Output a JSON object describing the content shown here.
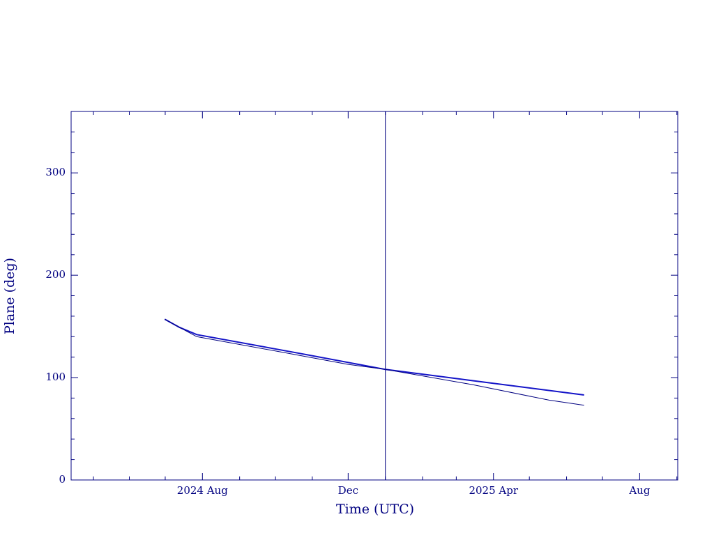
{
  "chart_data": {
    "type": "line",
    "x_label": "Time (UTC)",
    "y_label": "Plane (deg)",
    "xlim": [
      2024.282,
      2025.668
    ],
    "ylim": [
      0,
      360
    ],
    "xticks": [
      {
        "value": 2024.582,
        "label": "2024 Aug"
      },
      {
        "value": 2024.915,
        "label": "Dec"
      },
      {
        "value": 2025.247,
        "label": "2025 Apr"
      },
      {
        "value": 2025.581,
        "label": "Aug"
      }
    ],
    "x_minor_ticks": [
      2024.333,
      2024.415,
      2024.497,
      2024.667,
      2024.749,
      2024.833,
      2025.0,
      2025.085,
      2025.162,
      2025.329,
      2025.414,
      2025.496,
      2025.666
    ],
    "yticks": [
      0,
      100,
      200,
      300
    ],
    "y_minor_ticks": [
      20,
      40,
      60,
      80,
      120,
      140,
      160,
      180,
      220,
      240,
      260,
      280,
      320,
      340
    ],
    "marker_x": 2025.0,
    "axis_color": "#000080",
    "series": [
      {
        "color": "#1414c8",
        "width": 2,
        "x": [
          2024.496,
          2024.53,
          2024.569,
          2024.8,
          2025.0,
          2025.2,
          2025.454
        ],
        "values": [
          157,
          149,
          142,
          124,
          108,
          97,
          83
        ]
      },
      {
        "color": "#000080",
        "width": 1,
        "x": [
          2024.496,
          2024.53,
          2024.569,
          2024.8,
          2024.914,
          2025.0,
          2025.2,
          2025.374,
          2025.454
        ],
        "values": [
          157,
          149,
          140,
          122,
          113,
          108,
          93,
          78,
          73
        ]
      }
    ]
  }
}
